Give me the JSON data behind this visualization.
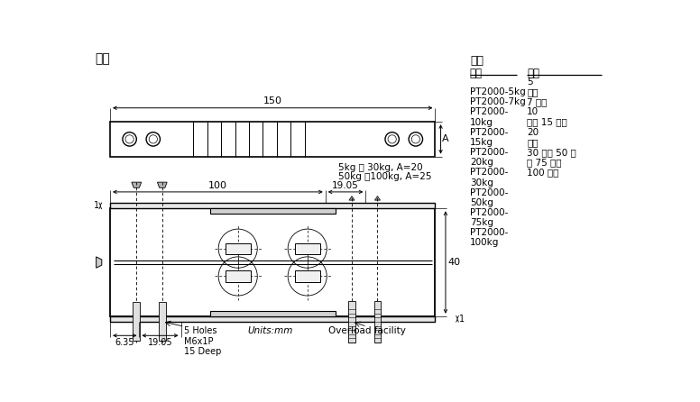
{
  "title": "尺寸",
  "bg_color": "#ffffff",
  "line_color": "#000000",
  "capability_title": "能力",
  "col1_header": "型号",
  "col2_header": "容量",
  "table_rows": [
    [
      "",
      "5"
    ],
    [
      "PT2000-5kg",
      "公斤"
    ],
    [
      "PT2000-7kg",
      "7 公斤"
    ],
    [
      "PT2000-",
      "10"
    ],
    [
      "10kg",
      "公斤 15 公斤"
    ],
    [
      "PT2000-",
      "20"
    ],
    [
      "15kg",
      "公斤"
    ],
    [
      "PT2000-",
      "30 公斤 50 公"
    ],
    [
      "20kg",
      "斤 75 公斤"
    ],
    [
      "PT2000-",
      "100 公斤"
    ],
    [
      "30kg",
      ""
    ],
    [
      "PT2000-",
      ""
    ],
    [
      "50kg",
      ""
    ],
    [
      "PT2000-",
      ""
    ],
    [
      "75kg",
      ""
    ],
    [
      "PT2000-",
      ""
    ],
    [
      "100kg",
      ""
    ]
  ],
  "dim_150": "150",
  "dim_100": "100",
  "dim_1905_top": "19.05",
  "dim_A_label": "A",
  "dim_note1": "5kg ～ 30kg, A=20",
  "dim_note2": "50kg ～100kg, A=25",
  "dim_40": "40",
  "dim_1_top": "1",
  "dim_1_bot": "1",
  "dim_635": "6.35",
  "dim_1905_bot": "19.05",
  "holes_label": "5 Holes\nM6x1P\n15 Deep",
  "units_label": "Units:mm",
  "overload_label": "Overload facility"
}
